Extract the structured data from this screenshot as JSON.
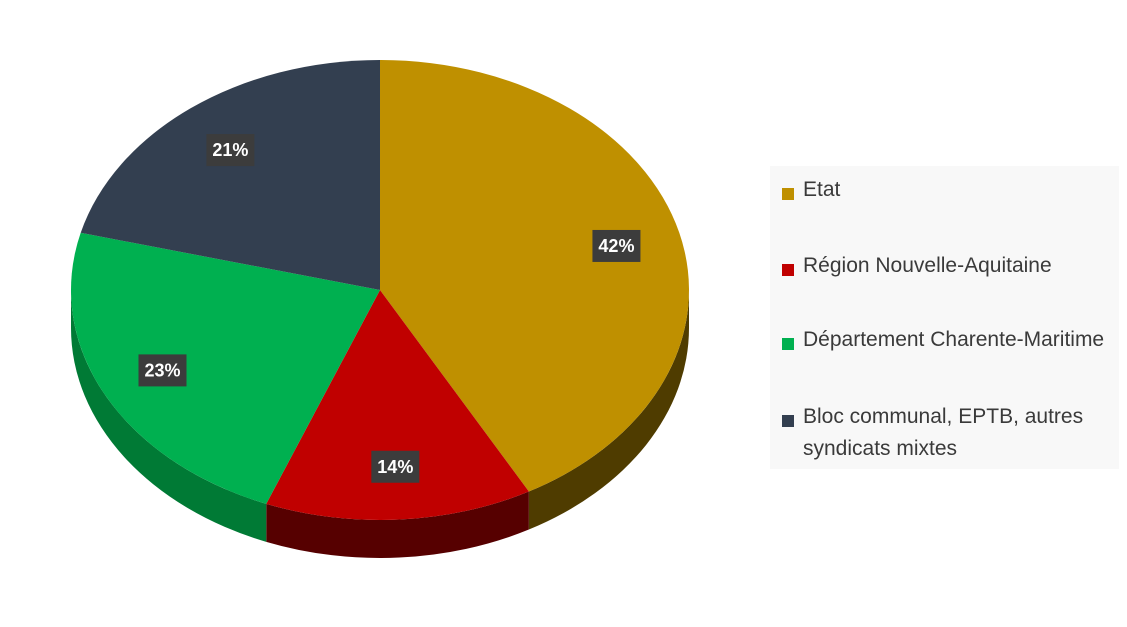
{
  "chart_data": {
    "type": "pie",
    "style": "3d",
    "categories": [
      "Etat",
      "Région Nouvelle-Aquitaine",
      "Département Charente-Maritime",
      "Bloc communal, EPTB, autres syndicats mixtes"
    ],
    "values": [
      42,
      14,
      23,
      21
    ],
    "data_labels": [
      "42%",
      "14%",
      "23%",
      "21%"
    ],
    "colors": [
      "#bf9000",
      "#c00000",
      "#00b050",
      "#333f50"
    ],
    "side_colors": [
      "#4f3c00",
      "#560000",
      "#007a35",
      "#1f2733"
    ],
    "legend_position": "right",
    "title": ""
  },
  "legend": {
    "items": [
      {
        "label": "Etat",
        "color": "#bf9000"
      },
      {
        "label": "Région Nouvelle-Aquitaine",
        "color": "#c00000"
      },
      {
        "label": "Département Charente-Maritime",
        "color": "#00b050"
      },
      {
        "label": "Bloc communal, EPTB, autres syndicats mixtes",
        "color": "#333f50"
      }
    ]
  }
}
